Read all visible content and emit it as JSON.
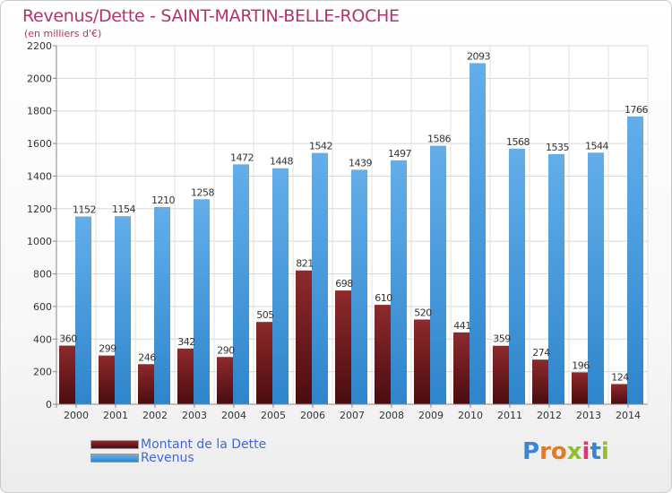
{
  "header": {
    "title": "Revenus/Dette - SAINT-MARTIN-BELLE-ROCHE",
    "subtitle": "(en milliers d'€)"
  },
  "colors": {
    "dette": "#7a1f22",
    "dette_dark": "#5a1014",
    "revenus": "#5ea9e6",
    "revenus_dark": "#2f86cc",
    "title": "#b2336b",
    "legend_text": "#4466dd"
  },
  "legend": {
    "dette_label": "Montant de la Dette",
    "revenus_label": "Revenus"
  },
  "logo": {
    "text": "Proxiti"
  },
  "chart_data": {
    "type": "bar",
    "title": "Revenus/Dette - SAINT-MARTIN-BELLE-ROCHE",
    "subtitle": "(en milliers d'€)",
    "xlabel": "",
    "ylabel": "",
    "ylim": [
      0,
      2200
    ],
    "yticks": [
      0,
      200,
      400,
      600,
      800,
      1000,
      1200,
      1400,
      1600,
      1800,
      2000,
      2200
    ],
    "grid": true,
    "legend_position": "bottom-left",
    "categories": [
      "2000",
      "2001",
      "2002",
      "2003",
      "2004",
      "2005",
      "2006",
      "2007",
      "2008",
      "2009",
      "2010",
      "2011",
      "2012",
      "2013",
      "2014"
    ],
    "series": [
      {
        "name": "Montant de la Dette",
        "values": [
          360,
          299,
          246,
          342,
          290,
          505,
          821,
          698,
          610,
          520,
          441,
          359,
          274,
          196,
          124
        ],
        "labels": [
          "360",
          "299",
          "246",
          "342",
          "290",
          "505",
          "821",
          "698",
          "610",
          "520",
          "441",
          "359",
          "274",
          "196",
          "124"
        ]
      },
      {
        "name": "Revenus",
        "values": [
          1152,
          1154,
          1210,
          1258,
          1472,
          1448,
          1542,
          1439,
          1497,
          1586,
          2093,
          1568,
          1535,
          1544,
          1766
        ],
        "labels": [
          "1152",
          "1154",
          "1210",
          "1258",
          "1472",
          "1448",
          "1542",
          "1439",
          "1497",
          "1586",
          "2093",
          "1568",
          "1535",
          "1544",
          "1766"
        ]
      }
    ]
  }
}
